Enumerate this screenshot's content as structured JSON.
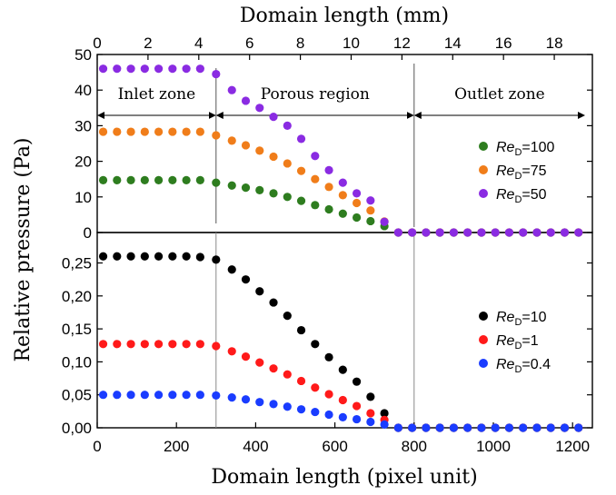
{
  "chart_data": {
    "type": "scatter",
    "shared": {
      "xlabel_bottom": "Domain length (pixel unit)",
      "xlabel_top": "Domain length (mm)",
      "ylabel": "Relative pressure (Pa)",
      "xlim_bottom": [
        0,
        1250
      ],
      "xlim_top_mm": [
        0,
        19.5
      ],
      "bottom_ticks": [
        "0",
        "200",
        "400",
        "600",
        "800",
        "1000",
        "1200"
      ],
      "top_ticks": [
        "0",
        "2",
        "4",
        "6",
        "8",
        "10",
        "12",
        "14",
        "16",
        "18"
      ],
      "zone_boundaries": [
        300,
        800
      ]
    },
    "panels": [
      {
        "name": "top",
        "ylim": [
          0,
          50
        ],
        "yticks": [
          "0",
          "10",
          "20",
          "30",
          "40",
          "50"
        ],
        "zones": [
          {
            "label": "Inlet zone",
            "from": 0,
            "to": 300
          },
          {
            "label": "Porous region",
            "from": 300,
            "to": 800
          },
          {
            "label": "Outlet zone",
            "from": 800,
            "to": 1250
          }
        ],
        "x": [
          15,
          50,
          85,
          120,
          155,
          190,
          225,
          260,
          300,
          340,
          375,
          410,
          445,
          480,
          515,
          550,
          585,
          620,
          655,
          690,
          725,
          760,
          795,
          830,
          865,
          900,
          935,
          970,
          1005,
          1040,
          1075,
          1110,
          1145,
          1180,
          1215
        ],
        "series": [
          {
            "label_main": "Re",
            "label_sub": "D",
            "label_value": "=100",
            "color": "#2e7d1f",
            "values": [
              14.7,
              14.7,
              14.7,
              14.7,
              14.7,
              14.7,
              14.7,
              14.7,
              14.0,
              13.2,
              12.6,
              11.9,
              11.0,
              10.0,
              8.9,
              7.7,
              6.5,
              5.3,
              4.2,
              3.2,
              1.8,
              0,
              0,
              0,
              0,
              0,
              0,
              0,
              0,
              0,
              0,
              0,
              0,
              0,
              0
            ]
          },
          {
            "label_main": "Re",
            "label_sub": "D",
            "label_value": "=75",
            "color": "#f07d1a",
            "values": [
              28.3,
              28.3,
              28.3,
              28.3,
              28.3,
              28.3,
              28.3,
              28.3,
              27.3,
              25.8,
              24.5,
              23.0,
              21.3,
              19.4,
              17.3,
              15.0,
              12.8,
              10.5,
              8.3,
              6.2,
              3.1,
              0,
              0,
              0,
              0,
              0,
              0,
              0,
              0,
              0,
              0,
              0,
              0,
              0,
              0
            ]
          },
          {
            "label_main": "Re",
            "label_sub": "D",
            "label_value": "=50",
            "color": "#8a2be2",
            "values": [
              46.0,
              46.0,
              46.0,
              46.0,
              46.0,
              46.0,
              46.0,
              46.0,
              44.5,
              40.0,
              37.0,
              35.0,
              32.5,
              30.0,
              26.3,
              21.5,
              17.5,
              14.0,
              11.0,
              9.0,
              3.0,
              0,
              0,
              0,
              0,
              0,
              0,
              0,
              0,
              0,
              0,
              0,
              0,
              0,
              0
            ]
          }
        ]
      },
      {
        "name": "bottom",
        "ylim": [
          0,
          0.27
        ],
        "yticks": [
          "0,00",
          "0,05",
          "0,10",
          "0,15",
          "0,20",
          "0,25"
        ],
        "x": [
          15,
          50,
          85,
          120,
          155,
          190,
          225,
          260,
          300,
          340,
          375,
          410,
          445,
          480,
          515,
          550,
          585,
          620,
          655,
          690,
          725,
          760,
          795,
          830,
          865,
          900,
          935,
          970,
          1005,
          1040,
          1075,
          1110,
          1145,
          1180,
          1215
        ],
        "series": [
          {
            "label_main": "Re",
            "label_sub": "D",
            "label_value": "=10",
            "color": "#000000",
            "values": [
              0.26,
              0.26,
              0.26,
              0.26,
              0.26,
              0.26,
              0.26,
              0.259,
              0.255,
              0.24,
              0.225,
              0.207,
              0.19,
              0.17,
              0.148,
              0.127,
              0.107,
              0.088,
              0.07,
              0.047,
              0.022,
              0,
              0,
              0,
              0,
              0,
              0,
              0,
              0,
              0,
              0,
              0,
              0,
              0,
              0
            ]
          },
          {
            "label_main": "Re",
            "label_sub": "D",
            "label_value": "=1",
            "color": "#ff1a1a",
            "values": [
              0.127,
              0.127,
              0.127,
              0.127,
              0.127,
              0.127,
              0.127,
              0.127,
              0.124,
              0.116,
              0.108,
              0.099,
              0.09,
              0.081,
              0.071,
              0.061,
              0.051,
              0.042,
              0.033,
              0.022,
              0.012,
              0,
              0,
              0,
              0,
              0,
              0,
              0,
              0,
              0,
              0,
              0,
              0,
              0,
              0
            ]
          },
          {
            "label_main": "Re",
            "label_sub": "D",
            "label_value": "=0.4",
            "color": "#1a3cff",
            "values": [
              0.05,
              0.05,
              0.05,
              0.05,
              0.05,
              0.05,
              0.05,
              0.05,
              0.049,
              0.046,
              0.043,
              0.039,
              0.036,
              0.032,
              0.028,
              0.024,
              0.02,
              0.016,
              0.013,
              0.009,
              0.005,
              0,
              0,
              0,
              0,
              0,
              0,
              0,
              0,
              0,
              0,
              0,
              0,
              0,
              0
            ]
          }
        ]
      }
    ]
  }
}
